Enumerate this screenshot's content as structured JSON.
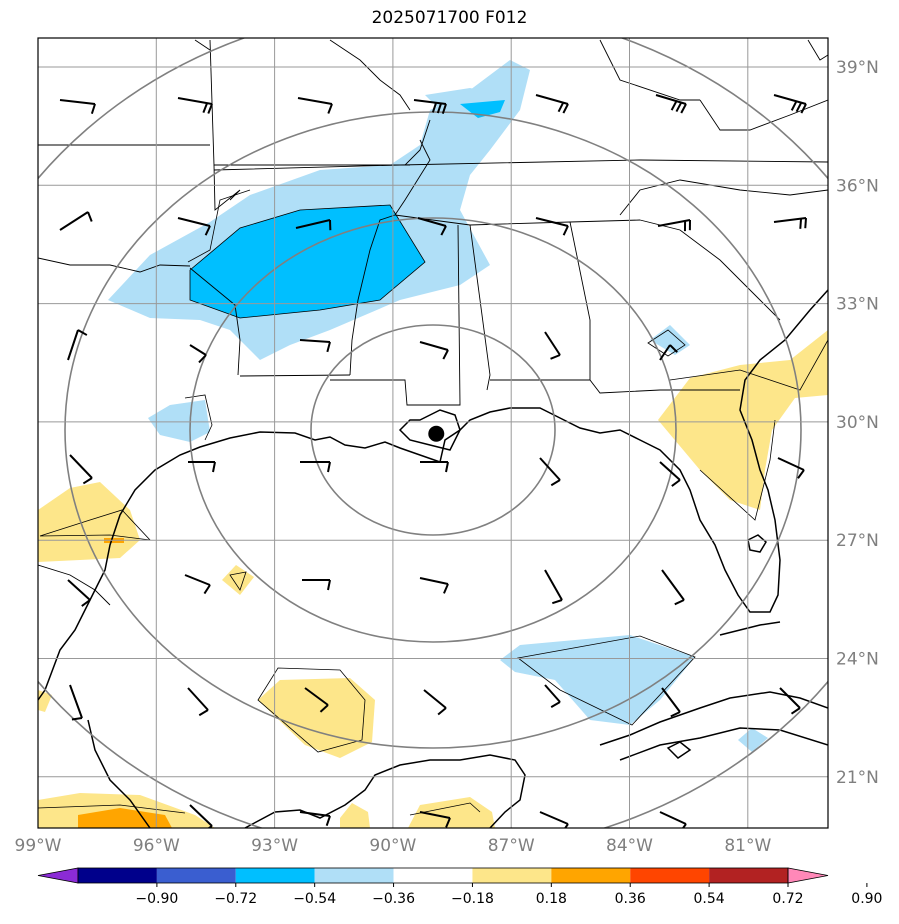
{
  "title": "2025071700 F012",
  "lat_labels": [
    "39°N",
    "36°N",
    "33°N",
    "30°N",
    "27°N",
    "24°N",
    "21°N"
  ],
  "lon_labels": [
    "99°W",
    "96°W",
    "93°W",
    "90°W",
    "87°W",
    "84°W",
    "81°W"
  ],
  "colorbar": {
    "ticks": [
      "−0.90",
      "−0.72",
      "−0.54",
      "−0.36",
      "−0.18",
      "0.18",
      "0.36",
      "0.54",
      "0.72",
      "0.90"
    ],
    "colors": [
      "#8b2bd6",
      "#00008b",
      "#3a5ed0",
      "#00bfff",
      "#b0dff7",
      "#ffffff",
      "#fde68a",
      "#ffa500",
      "#ff4500",
      "#b22222",
      "#ff88b8"
    ]
  },
  "colors": {
    "frame": "#000000",
    "grid": "#999999",
    "ring": "#808080",
    "coast": "#000000",
    "neg_light": "#b0dff7",
    "neg_mid": "#00bfff",
    "pos_light": "#fde68a",
    "pos_mid": "#ffa500"
  },
  "storm_center": {
    "lon": -88.9,
    "lat": 29.7
  }
}
